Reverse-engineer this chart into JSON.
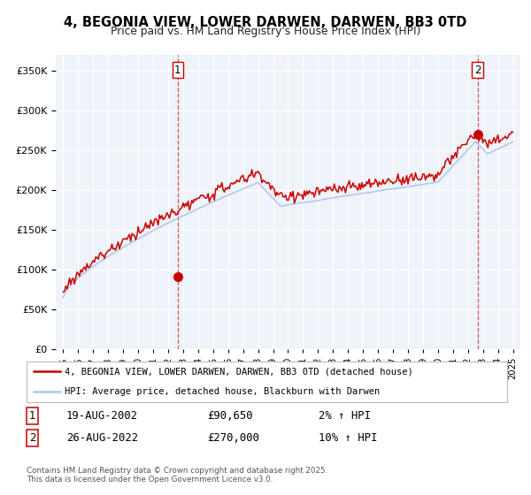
{
  "title": "4, BEGONIA VIEW, LOWER DARWEN, DARWEN, BB3 0TD",
  "subtitle": "Price paid vs. HM Land Registry's House Price Index (HPI)",
  "legend_line1": "4, BEGONIA VIEW, LOWER DARWEN, DARWEN, BB3 0TD (detached house)",
  "legend_line2": "HPI: Average price, detached house, Blackburn with Darwen",
  "sale1_date": "19-AUG-2002",
  "sale1_price": "£90,650",
  "sale1_hpi": "2% ↑ HPI",
  "sale2_date": "26-AUG-2022",
  "sale2_price": "£270,000",
  "sale2_hpi": "10% ↑ HPI",
  "footer": "Contains HM Land Registry data © Crown copyright and database right 2025.\nThis data is licensed under the Open Government Licence v3.0.",
  "hpi_line_color": "#aec6e8",
  "price_line_color": "#cc0000",
  "sale1_vline_x": 2002.64,
  "sale2_vline_x": 2022.65,
  "sale1_dot_x": 2002.64,
  "sale1_dot_y": 90650,
  "sale2_dot_x": 2022.65,
  "sale2_dot_y": 270000,
  "ylim": [
    0,
    370000
  ],
  "xlim": [
    1994.5,
    2025.5
  ],
  "plot_bg_color": "#eef2f9",
  "grid_color": "#ffffff"
}
